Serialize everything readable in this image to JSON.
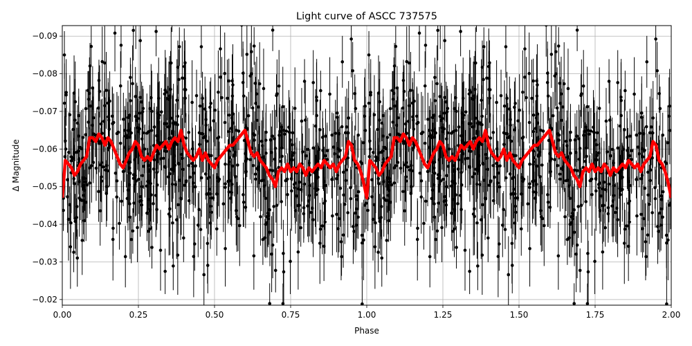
{
  "chart_data": {
    "type": "scatter",
    "title": "Light curve of ASCC 737575",
    "xlabel": "Phase",
    "ylabel": "Δ Magnitude",
    "xlim": [
      0.0,
      2.0
    ],
    "ylim": [
      -0.0185,
      -0.0928
    ],
    "y_inverted": true,
    "grid": true,
    "x_ticks": [
      "0.00",
      "0.25",
      "0.50",
      "0.75",
      "1.00",
      "1.25",
      "1.50",
      "1.75",
      "2.00"
    ],
    "x_tick_values": [
      0.0,
      0.25,
      0.5,
      0.75,
      1.0,
      1.25,
      1.5,
      1.75,
      2.0
    ],
    "y_ticks": [
      "−0.02",
      "−0.03",
      "−0.04",
      "−0.05",
      "−0.06",
      "−0.07",
      "−0.08",
      "−0.09"
    ],
    "y_tick_values": [
      -0.02,
      -0.03,
      -0.04,
      -0.05,
      -0.06,
      -0.07,
      -0.08,
      -0.09
    ],
    "series": [
      {
        "kind": "points-with-errorbars",
        "color": "#000000",
        "mean": -0.057,
        "scatter_sd": 0.012,
        "error": 0.008,
        "count_per_phase_unit": 700,
        "description_of_pattern": "dense noisy photometry folded twice over phase 0-2"
      },
      {
        "kind": "binned-mean-line",
        "color": "#ff0000",
        "x": [
          0.0,
          0.01,
          0.02,
          0.03,
          0.04,
          0.05,
          0.06,
          0.07,
          0.08,
          0.09,
          0.1,
          0.11,
          0.12,
          0.13,
          0.14,
          0.15,
          0.16,
          0.17,
          0.18,
          0.19,
          0.2,
          0.21,
          0.22,
          0.23,
          0.24,
          0.25,
          0.26,
          0.27,
          0.28,
          0.29,
          0.3,
          0.31,
          0.32,
          0.33,
          0.34,
          0.35,
          0.36,
          0.37,
          0.38,
          0.39,
          0.4,
          0.41,
          0.42,
          0.43,
          0.44,
          0.45,
          0.46,
          0.47,
          0.48,
          0.49,
          0.5,
          0.51,
          0.52,
          0.53,
          0.54,
          0.55,
          0.56,
          0.57,
          0.58,
          0.59,
          0.6,
          0.61,
          0.62,
          0.63,
          0.64,
          0.65,
          0.66,
          0.67,
          0.68,
          0.69,
          0.7,
          0.71,
          0.72,
          0.73,
          0.74,
          0.75,
          0.76,
          0.77,
          0.78,
          0.79,
          0.8,
          0.81,
          0.82,
          0.83,
          0.84,
          0.85,
          0.86,
          0.87,
          0.88,
          0.89,
          0.9,
          0.91,
          0.92,
          0.93,
          0.94,
          0.95,
          0.96,
          0.97,
          0.98,
          0.99,
          1.0
        ],
        "y": [
          -0.047,
          -0.057,
          -0.056,
          -0.055,
          -0.053,
          -0.054,
          -0.056,
          -0.057,
          -0.058,
          -0.063,
          -0.063,
          -0.062,
          -0.064,
          -0.063,
          -0.061,
          -0.063,
          -0.062,
          -0.06,
          -0.058,
          -0.056,
          -0.055,
          -0.057,
          -0.059,
          -0.06,
          -0.062,
          -0.061,
          -0.058,
          -0.057,
          -0.058,
          -0.057,
          -0.059,
          -0.061,
          -0.06,
          -0.061,
          -0.062,
          -0.06,
          -0.062,
          -0.063,
          -0.062,
          -0.065,
          -0.061,
          -0.059,
          -0.058,
          -0.057,
          -0.058,
          -0.06,
          -0.057,
          -0.059,
          -0.057,
          -0.056,
          -0.055,
          -0.057,
          -0.058,
          -0.059,
          -0.06,
          -0.061,
          -0.061,
          -0.062,
          -0.063,
          -0.064,
          -0.065,
          -0.062,
          -0.059,
          -0.058,
          -0.059,
          -0.057,
          -0.056,
          -0.055,
          -0.053,
          -0.052,
          -0.05,
          -0.054,
          -0.055,
          -0.054,
          -0.056,
          -0.054,
          -0.055,
          -0.054,
          -0.056,
          -0.055,
          -0.053,
          -0.055,
          -0.054,
          -0.055,
          -0.056,
          -0.055,
          -0.057,
          -0.056,
          -0.055,
          -0.056,
          -0.054,
          -0.056,
          -0.057,
          -0.058,
          -0.062,
          -0.061,
          -0.057,
          -0.056,
          -0.054,
          -0.051,
          -0.047
        ],
        "repeats_with_period": 1.0
      }
    ]
  }
}
